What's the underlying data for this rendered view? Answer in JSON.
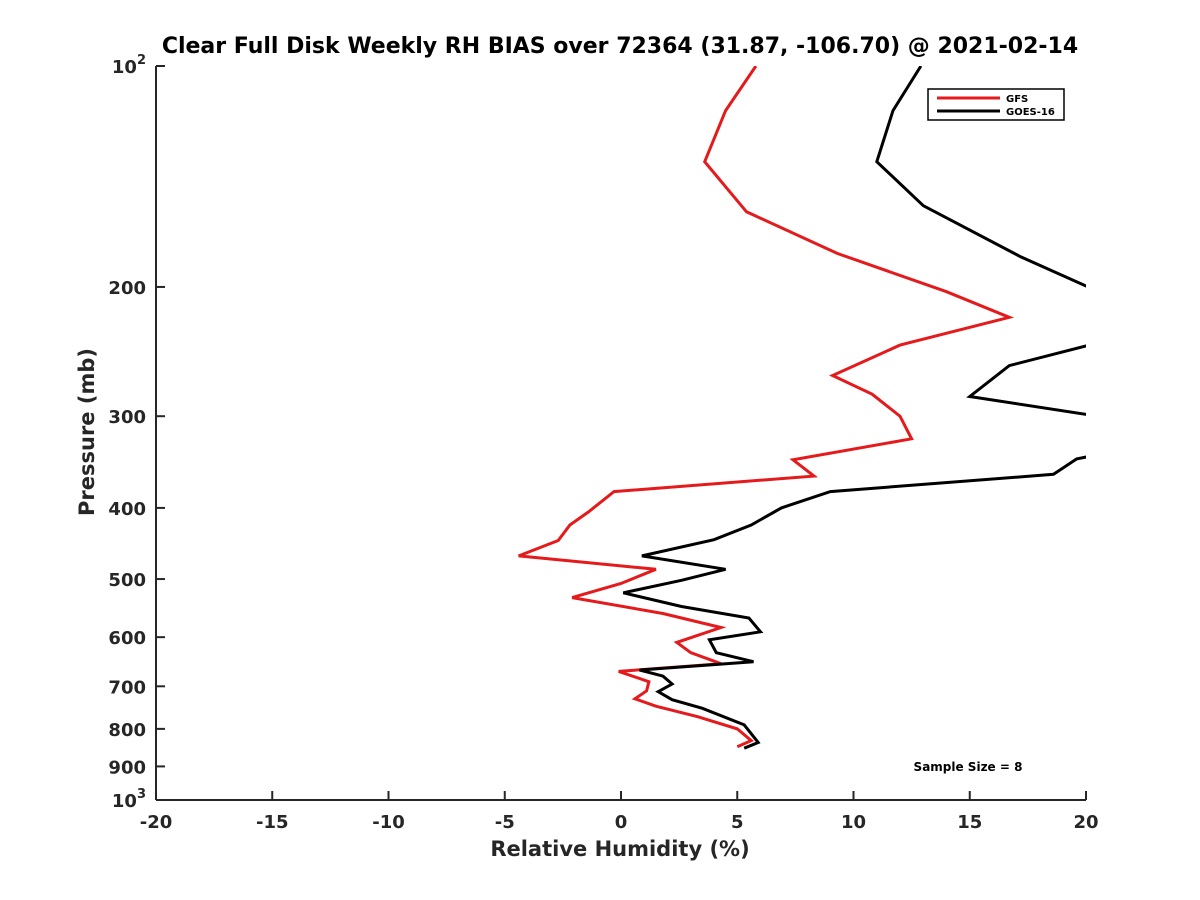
{
  "chart_data": {
    "type": "line",
    "title": "Clear Full Disk Weekly RH BIAS over 72364 (31.87, -106.70) @ 2021-02-14",
    "xlabel": "Relative Humidity (%)",
    "ylabel": "Pressure (mb)",
    "xlim": [
      -20,
      20
    ],
    "ylim": [
      100,
      1000
    ],
    "y_scale": "log",
    "y_reversed": true,
    "grid": false,
    "legend_position": "top-right",
    "x_ticks": [
      "-20",
      "-15",
      "-10",
      "-5",
      "0",
      "5",
      "10",
      "15",
      "20"
    ],
    "y_ticks": [
      {
        "value": 100,
        "base": "10",
        "exp": "2"
      },
      {
        "value": 200,
        "label": "200"
      },
      {
        "value": 300,
        "label": "300"
      },
      {
        "value": 400,
        "label": "400"
      },
      {
        "value": 500,
        "label": "500"
      },
      {
        "value": 600,
        "label": "600"
      },
      {
        "value": 700,
        "label": "700"
      },
      {
        "value": 800,
        "label": "800"
      },
      {
        "value": 900,
        "label": "900"
      },
      {
        "value": 1000,
        "base": "10",
        "exp": "3"
      }
    ],
    "series": [
      {
        "name": "GFS",
        "color": "#e41a1c",
        "points": [
          [
            5.8,
            100
          ],
          [
            4.5,
            115
          ],
          [
            3.6,
            135
          ],
          [
            5.4,
            158
          ],
          [
            9.3,
            180
          ],
          [
            14.0,
            203
          ],
          [
            16.7,
            220
          ],
          [
            12.0,
            240
          ],
          [
            9.1,
            264
          ],
          [
            10.8,
            280
          ],
          [
            12.0,
            300
          ],
          [
            12.5,
            322
          ],
          [
            7.4,
            344
          ],
          [
            8.3,
            362
          ],
          [
            -0.3,
            380
          ],
          [
            -1.4,
            405
          ],
          [
            -2.2,
            422
          ],
          [
            -2.7,
            443
          ],
          [
            -4.4,
            465
          ],
          [
            1.5,
            485
          ],
          [
            0.0,
            507
          ],
          [
            -2.1,
            530
          ],
          [
            1.8,
            557
          ],
          [
            4.3,
            582
          ],
          [
            2.4,
            610
          ],
          [
            3.0,
            630
          ],
          [
            4.3,
            652
          ],
          [
            -0.1,
            668
          ],
          [
            1.2,
            690
          ],
          [
            1.1,
            710
          ],
          [
            0.6,
            728
          ],
          [
            1.5,
            745
          ],
          [
            3.3,
            770
          ],
          [
            5.0,
            800
          ],
          [
            5.6,
            830
          ],
          [
            5.0,
            846
          ]
        ]
      },
      {
        "name": "GOES-16",
        "color": "#000000",
        "points": [
          [
            12.9,
            100
          ],
          [
            11.7,
            115
          ],
          [
            11.0,
            135
          ],
          [
            13.0,
            155
          ],
          [
            17.2,
            182
          ],
          [
            20.1,
            200
          ],
          [
            20.6,
            238
          ],
          [
            16.7,
            256
          ],
          [
            15.0,
            282
          ],
          [
            20.5,
            300
          ],
          [
            20.2,
            340
          ],
          [
            19.6,
            343
          ],
          [
            18.6,
            360
          ],
          [
            9.0,
            380
          ],
          [
            6.9,
            400
          ],
          [
            5.6,
            422
          ],
          [
            4.0,
            442
          ],
          [
            0.9,
            465
          ],
          [
            4.5,
            485
          ],
          [
            2.6,
            502
          ],
          [
            0.1,
            522
          ],
          [
            2.6,
            545
          ],
          [
            5.5,
            565
          ],
          [
            6.0,
            590
          ],
          [
            3.8,
            605
          ],
          [
            4.1,
            630
          ],
          [
            5.7,
            648
          ],
          [
            0.8,
            665
          ],
          [
            1.8,
            678
          ],
          [
            2.2,
            695
          ],
          [
            1.6,
            712
          ],
          [
            2.2,
            730
          ],
          [
            3.5,
            750
          ],
          [
            5.3,
            790
          ],
          [
            5.9,
            835
          ],
          [
            5.3,
            850
          ]
        ]
      }
    ],
    "annotations": [
      "Sample Size = 8"
    ]
  }
}
